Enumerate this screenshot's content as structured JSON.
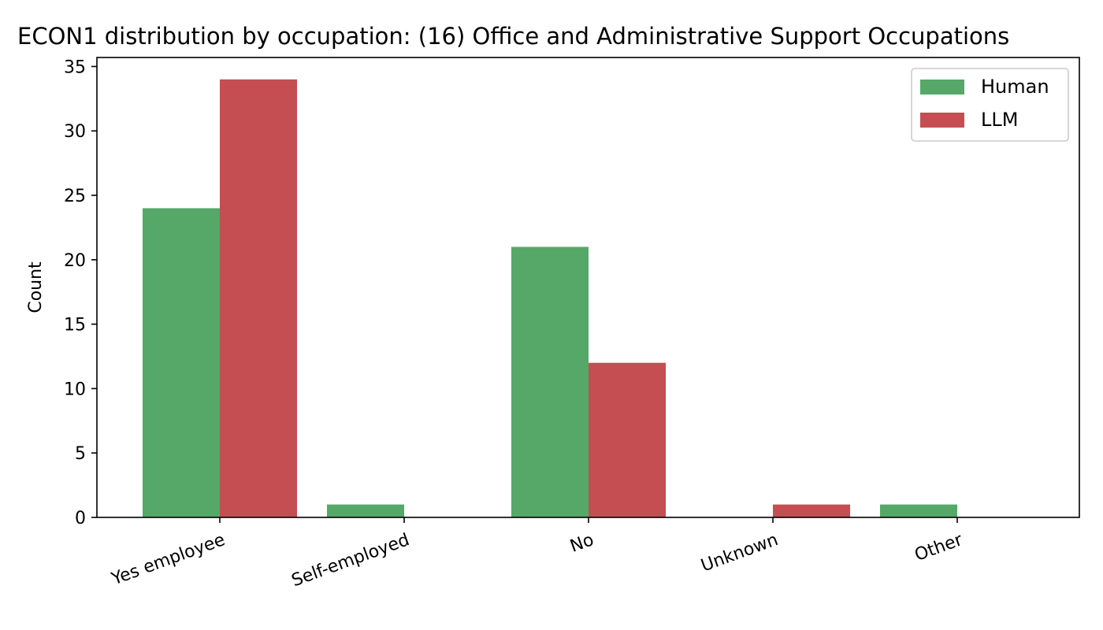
{
  "chart_data": {
    "type": "bar",
    "title": "ECON1 distribution by occupation: (16) Office and Administrative Support Occupations",
    "xlabel": "",
    "ylabel": "Count",
    "categories": [
      "Yes employee",
      "Self-employed",
      "No",
      "Unknown",
      "Other"
    ],
    "series": [
      {
        "name": "Human",
        "color": "#55a868",
        "values": [
          24,
          1,
          21,
          0,
          1
        ]
      },
      {
        "name": "LLM",
        "color": "#c44e52",
        "values": [
          34,
          0,
          12,
          1,
          0
        ]
      }
    ],
    "ylim": [
      0,
      35.7
    ],
    "yticks": [
      0,
      5,
      10,
      15,
      20,
      25,
      30,
      35
    ],
    "grid": false,
    "legend_position": "top-right"
  }
}
